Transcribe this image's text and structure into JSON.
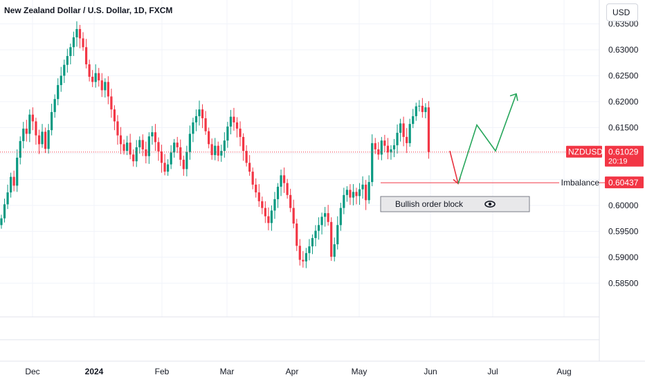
{
  "header": {
    "title": "New Zealand Dollar / U.S. Dollar, 1D, FXCM",
    "currency_button": "USD"
  },
  "colors": {
    "up": "#089981",
    "down": "#f23645",
    "arrow_up": "#26a65b",
    "arrow_down": "#e8323f",
    "grid": "#f0f3fa",
    "price_line": "#f23645"
  },
  "chart_data": {
    "type": "candlestick",
    "symbol": "NZDUSD",
    "y_ticks": [
      0.635,
      0.63,
      0.625,
      0.62,
      0.615,
      0.61,
      0.605,
      0.6,
      0.595,
      0.59,
      0.585
    ],
    "y_tick_labels": [
      "0.63500",
      "0.63000",
      "0.62500",
      "0.62000",
      "0.61500",
      "",
      "",
      "0.60000",
      "0.59500",
      "0.59000",
      "0.58500"
    ],
    "x_ticks": [
      "Dec",
      "2024",
      "Feb",
      "Mar",
      "Apr",
      "May",
      "Jun",
      "Jul",
      "Aug"
    ],
    "ylim": [
      0.5785,
      0.6396
    ],
    "last_price": {
      "symbol": "NZDUSD",
      "value": "0.61029",
      "countdown": "20:19"
    },
    "imbalance": {
      "label": "Imbalance",
      "value": "0.60437"
    },
    "order_block": {
      "label": "Bullish order block",
      "icon": "eye-icon"
    },
    "projection": {
      "down_arrow": [
        0.6105,
        0.6042
      ],
      "up_path": [
        0.6042,
        0.6155,
        0.6105,
        0.6215
      ]
    },
    "closes": [
      0.5975,
      0.6002,
      0.6025,
      0.6055,
      0.6038,
      0.6092,
      0.6124,
      0.6148,
      0.6138,
      0.6175,
      0.6162,
      0.6135,
      0.6118,
      0.6142,
      0.6109,
      0.6145,
      0.618,
      0.6205,
      0.6232,
      0.625,
      0.6271,
      0.6288,
      0.6305,
      0.6324,
      0.634,
      0.6322,
      0.6305,
      0.6272,
      0.6248,
      0.6238,
      0.6255,
      0.6241,
      0.6222,
      0.6238,
      0.621,
      0.6185,
      0.6162,
      0.6135,
      0.6118,
      0.6105,
      0.6121,
      0.6098,
      0.6085,
      0.6112,
      0.6126,
      0.6108,
      0.6095,
      0.6133,
      0.6141,
      0.6122,
      0.6104,
      0.6082,
      0.6065,
      0.6079,
      0.6102,
      0.6121,
      0.6112,
      0.6088,
      0.607,
      0.6103,
      0.6138,
      0.616,
      0.6172,
      0.6185,
      0.6168,
      0.6143,
      0.6118,
      0.6097,
      0.6115,
      0.6096,
      0.6105,
      0.6125,
      0.6152,
      0.6171,
      0.616,
      0.6148,
      0.6132,
      0.6105,
      0.6082,
      0.6065,
      0.604,
      0.6025,
      0.6008,
      0.5995,
      0.5979,
      0.5966,
      0.599,
      0.6012,
      0.6036,
      0.6058,
      0.6043,
      0.602,
      0.5995,
      0.5965,
      0.5922,
      0.5895,
      0.5892,
      0.5908,
      0.5921,
      0.5937,
      0.5951,
      0.5962,
      0.5978,
      0.5985,
      0.5968,
      0.5901,
      0.5925,
      0.5962,
      0.5995,
      0.602,
      0.603,
      0.6015,
      0.6026,
      0.6018,
      0.6031,
      0.604,
      0.601,
      0.6045,
      0.612,
      0.6108,
      0.6098,
      0.6125,
      0.6115,
      0.6102,
      0.6108,
      0.6116,
      0.614,
      0.6158,
      0.6132,
      0.612,
      0.6157,
      0.6172,
      0.6191,
      0.6192,
      0.618,
      0.6189,
      0.6103
    ]
  }
}
